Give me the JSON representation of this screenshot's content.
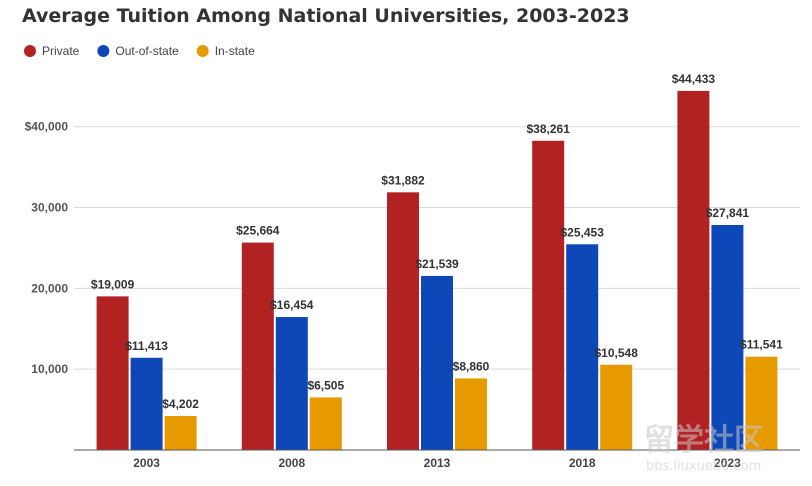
{
  "chart_data": {
    "type": "bar",
    "title": "Average Tuition Among National Universities, 2003-2023",
    "xlabel": "",
    "ylabel": "",
    "categories": [
      "2003",
      "2008",
      "2013",
      "2018",
      "2023"
    ],
    "ylim": [
      0,
      49000
    ],
    "yticks": [
      {
        "value": 10000,
        "label": "10,000"
      },
      {
        "value": 20000,
        "label": "20,000"
      },
      {
        "value": 30000,
        "label": "30,000"
      },
      {
        "value": 40000,
        "label": "$40,000"
      }
    ],
    "grid": true,
    "legend_position": "top-left",
    "series": [
      {
        "name": "Private",
        "color": "#b22222",
        "values": [
          19009,
          25664,
          31882,
          38261,
          44433
        ],
        "labels": [
          "$19,009",
          "$25,664",
          "$31,882",
          "$38,261",
          "$44,433"
        ]
      },
      {
        "name": "Out-of-state",
        "color": "#0d47b8",
        "values": [
          11413,
          16454,
          21539,
          25453,
          27841
        ],
        "labels": [
          "$11,413",
          "$16,454",
          "$21,539",
          "$25,453",
          "$27,841"
        ]
      },
      {
        "name": "In-state",
        "color": "#e69a00",
        "values": [
          4202,
          6505,
          8860,
          10548,
          11541
        ],
        "labels": [
          "$4,202",
          "$6,505",
          "$8,860",
          "$10,548",
          "$11,541"
        ]
      }
    ]
  },
  "watermark": {
    "text": "留学社区",
    "subtext": "bbs.liuxue86.com"
  }
}
